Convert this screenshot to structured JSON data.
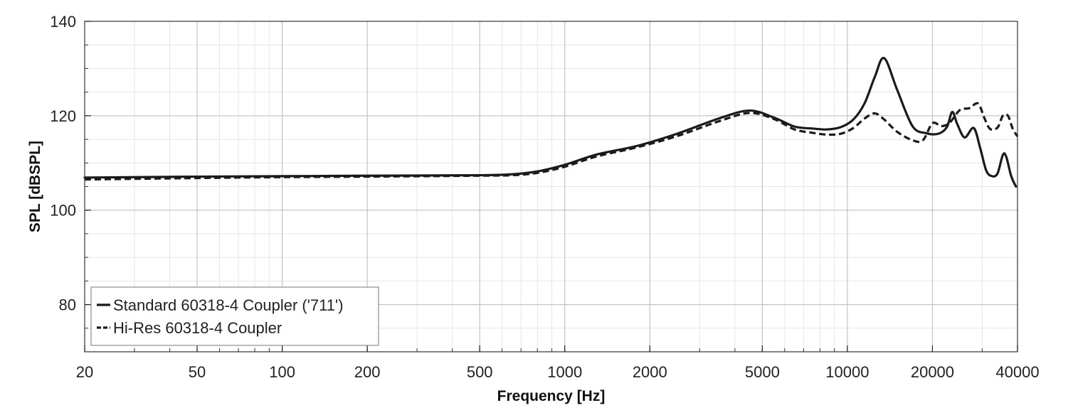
{
  "chart_data": {
    "type": "line",
    "title": "",
    "xlabel": "Frequency [Hz]",
    "ylabel": "SPL [dBSPL]",
    "xscale": "log",
    "xlim": [
      20,
      40000
    ],
    "ylim": [
      70,
      140
    ],
    "x_ticks": [
      20,
      50,
      100,
      200,
      500,
      1000,
      2000,
      5000,
      10000,
      20000,
      40000
    ],
    "x_tick_labels": [
      "20",
      "50",
      "100",
      "200",
      "500",
      "1000",
      "2000",
      "5000",
      "10000",
      "20000",
      "40000"
    ],
    "y_ticks": [
      80,
      100,
      120,
      140
    ],
    "y_tick_labels": [
      "80",
      "100",
      "120",
      "140"
    ],
    "grid": true,
    "legend_position": "bottom-left",
    "series": [
      {
        "name": "Standard 60318-4 Coupler ('711')",
        "line_style": "solid",
        "color": "#1a1a1a",
        "x": [
          20,
          50,
          100,
          200,
          500,
          650,
          800,
          1000,
          1300,
          1800,
          2500,
          3500,
          4500,
          5500,
          6500,
          7500,
          8500,
          9500,
          10500,
          11500,
          12500,
          13500,
          15000,
          17000,
          19000,
          21000,
          22500,
          23500,
          24500,
          26000,
          28000,
          29500,
          31000,
          32500,
          34000,
          35500,
          36500,
          38000,
          39500
        ],
        "y": [
          106.9,
          107.1,
          107.2,
          107.3,
          107.4,
          107.6,
          108.2,
          109.6,
          111.8,
          113.6,
          116.2,
          119.4,
          121.1,
          119.6,
          117.7,
          117.3,
          117.1,
          117.6,
          119.2,
          122.6,
          128.2,
          132.2,
          125.5,
          117.8,
          116.3,
          116.2,
          117.6,
          120.8,
          118.2,
          115.4,
          117.4,
          113.2,
          108.4,
          107.2,
          107.8,
          111.7,
          111.3,
          107.2,
          105.0
        ]
      },
      {
        "name": "Hi-Res 60318-4 Coupler",
        "line_style": "dashed",
        "color": "#1a1a1a",
        "x": [
          20,
          50,
          100,
          200,
          500,
          650,
          800,
          1000,
          1300,
          1800,
          2500,
          3500,
          4500,
          5500,
          6500,
          7500,
          8500,
          9500,
          10500,
          11500,
          12500,
          13500,
          15000,
          17000,
          18500,
          20000,
          21500,
          23000,
          25000,
          27000,
          29000,
          30500,
          32000,
          34000,
          35500,
          37000,
          38500,
          40000
        ],
        "y": [
          106.5,
          106.8,
          107.0,
          107.1,
          107.3,
          107.4,
          107.9,
          109.2,
          111.4,
          113.3,
          115.7,
          118.8,
          120.6,
          119.3,
          117.1,
          116.4,
          116.0,
          116.2,
          117.4,
          119.4,
          120.5,
          119.2,
          116.6,
          114.8,
          114.8,
          118.4,
          117.8,
          118.5,
          121.2,
          121.6,
          122.6,
          119.6,
          117.2,
          117.5,
          120.0,
          120.0,
          117.2,
          115.6
        ]
      }
    ]
  }
}
